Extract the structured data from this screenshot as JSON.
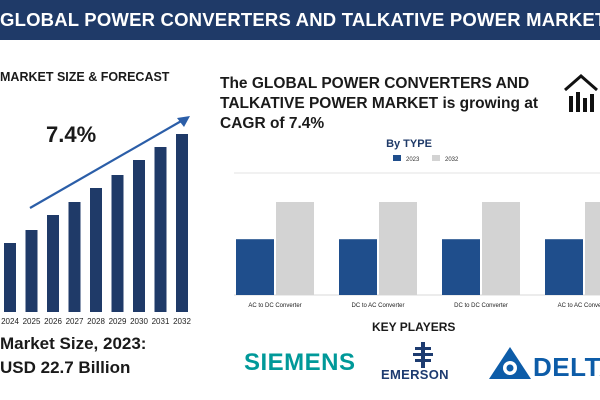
{
  "header": {
    "title": "GLOBAL POWER CONVERTERS AND TALKATIVE POWER MARKET"
  },
  "forecast": {
    "section_title": "MARKET SIZE & FORECAST",
    "cagr_label": "7.4%",
    "market_size_line1": "Market Size, 2023:",
    "market_size_line2": "USD 22.7 Billion"
  },
  "headline": {
    "text": "The GLOBAL POWER CONVERTERS AND TALKATIVE POWER MARKET is growing at CAGR of 7.4%"
  },
  "key_players": {
    "title": "KEY PLAYERS",
    "logos": [
      "SIEMENS",
      "EMERSON",
      "DELTA"
    ]
  },
  "icons": {
    "header_right": "house-chart-icon",
    "emerson_mark": "emerson-logo-icon",
    "delta_mark": "delta-logo-icon"
  },
  "colors": {
    "banner": "#1f3a68",
    "bar_2023": "#1f4e8c",
    "bar_2032": "#d3d3d3",
    "growth_bars": "#1f3a68"
  },
  "chart_data": [
    {
      "type": "bar",
      "title": "MARKET SIZE & FORECAST",
      "categories": [
        "2024",
        "2025",
        "2026",
        "2027",
        "2028",
        "2029",
        "2030",
        "2031",
        "2032"
      ],
      "values": [
        69,
        82,
        97,
        110,
        124,
        137,
        152,
        165,
        178
      ],
      "annotation": "7.4%",
      "trend_arrow": true
    },
    {
      "type": "bar",
      "title": "By TYPE",
      "categories": [
        "AC to DC Converter",
        "DC to AC Converter",
        "DC to DC Converter",
        "AC to AC Converter"
      ],
      "series": [
        {
          "name": "2023",
          "values": [
            60,
            60,
            60,
            60
          ]
        },
        {
          "name": "2032",
          "values": [
            100,
            100,
            100,
            100
          ]
        }
      ],
      "legend": "top"
    }
  ]
}
